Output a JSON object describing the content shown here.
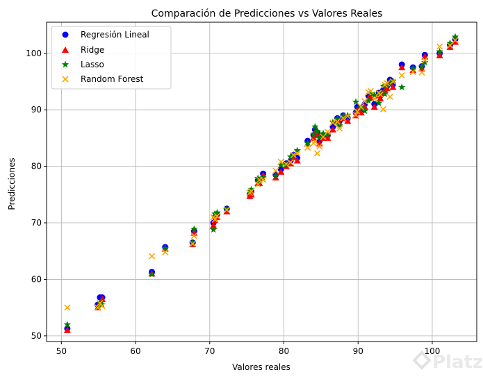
{
  "chart_data": {
    "type": "scatter",
    "title": "Comparación de Predicciones vs Valores Reales",
    "xlabel": "Valores reales",
    "ylabel": "Predicciones",
    "xlim": [
      48,
      106
    ],
    "ylim": [
      49,
      105.5
    ],
    "xticks": [
      50,
      60,
      70,
      80,
      90,
      100
    ],
    "yticks": [
      50,
      60,
      70,
      80,
      90,
      100
    ],
    "grid": true,
    "legend_position": "top-left",
    "x": [
      50.8,
      54.9,
      55.2,
      55.5,
      62.2,
      64.0,
      67.7,
      67.9,
      70.5,
      70.7,
      71.0,
      72.3,
      75.4,
      75.6,
      76.5,
      76.7,
      77.2,
      78.9,
      79.6,
      80.3,
      80.9,
      81.3,
      81.8,
      83.2,
      84.0,
      84.2,
      84.5,
      84.8,
      85.3,
      85.9,
      86.6,
      87.2,
      87.5,
      88.0,
      88.6,
      89.7,
      89.9,
      90.4,
      90.9,
      91.4,
      91.7,
      92.2,
      92.8,
      93.0,
      93.4,
      93.6,
      93.9,
      94.3,
      94.7,
      95.9,
      97.4,
      98.6,
      99.0,
      101.0,
      102.4,
      103.1
    ],
    "series": [
      {
        "name": "Regresión Lineal",
        "marker": "circle",
        "color": "#0000ff",
        "y": [
          51.3,
          55.5,
          56.8,
          56.8,
          61.3,
          65.7,
          66.5,
          68.5,
          70.0,
          71.0,
          71.5,
          72.5,
          75.0,
          75.5,
          77.5,
          77.5,
          78.7,
          78.5,
          79.5,
          80.5,
          81.0,
          82.0,
          81.5,
          84.5,
          85.5,
          86.5,
          86.0,
          84.5,
          85.5,
          85.5,
          87.0,
          88.5,
          88.0,
          89.0,
          88.5,
          89.5,
          90.5,
          90.0,
          91.0,
          92.5,
          92.5,
          91.0,
          93.0,
          92.5,
          93.5,
          94.0,
          94.2,
          95.3,
          94.5,
          98.0,
          97.5,
          97.7,
          99.7,
          100.0,
          101.5,
          102.5
        ]
      },
      {
        "name": "Ridge",
        "marker": "triangle",
        "color": "#ff0000",
        "y": [
          51.0,
          55.0,
          55.6,
          56.5,
          61.0,
          65.4,
          66.2,
          68.2,
          69.5,
          70.5,
          71.0,
          72.0,
          74.7,
          75.0,
          77.0,
          77.0,
          78.4,
          78.0,
          79.0,
          80.0,
          80.5,
          81.6,
          81.0,
          84.0,
          85.0,
          86.0,
          85.5,
          84.0,
          85.0,
          85.0,
          86.5,
          88.0,
          87.5,
          88.5,
          88.0,
          89.0,
          90.0,
          89.5,
          90.5,
          92.0,
          92.0,
          90.5,
          92.5,
          92.0,
          93.0,
          93.5,
          93.8,
          95.0,
          94.0,
          97.5,
          97.0,
          97.3,
          99.4,
          99.6,
          101.1,
          102.0
        ]
      },
      {
        "name": "Lasso",
        "marker": "star",
        "color": "#008000",
        "y": [
          52.0,
          55.2,
          55.8,
          55.6,
          60.9,
          65.5,
          66.5,
          68.9,
          68.8,
          71.6,
          71.8,
          72.4,
          75.6,
          75.9,
          77.9,
          77.3,
          78.0,
          78.3,
          80.2,
          80.3,
          81.7,
          82.0,
          82.8,
          84.1,
          85.7,
          87.0,
          86.2,
          85.1,
          85.8,
          85.7,
          87.8,
          88.4,
          87.2,
          88.9,
          89.0,
          91.4,
          89.8,
          90.4,
          89.8,
          91.6,
          92.9,
          92.6,
          91.2,
          93.1,
          94.2,
          92.8,
          94.4,
          94.6,
          95.1,
          94.0,
          97.3,
          97.7,
          98.4,
          100.3,
          101.8,
          102.9
        ]
      },
      {
        "name": "Random Forest",
        "marker": "x",
        "color": "#ffa500",
        "y": [
          55.0,
          55.0,
          55.8,
          55.3,
          64.1,
          64.8,
          66.3,
          67.7,
          71.0,
          70.6,
          71.2,
          72.3,
          75.3,
          75.6,
          76.8,
          77.6,
          77.6,
          79.2,
          80.8,
          80.4,
          80.7,
          82.0,
          82.3,
          83.3,
          84.1,
          84.4,
          82.3,
          83.5,
          85.2,
          86.1,
          87.7,
          87.9,
          86.7,
          88.5,
          88.9,
          89.1,
          89.7,
          90.5,
          91.5,
          93.1,
          93.3,
          92.0,
          93.0,
          92.7,
          90.1,
          94.4,
          94.7,
          92.3,
          95.0,
          96.1,
          96.7,
          96.6,
          98.8,
          101.2,
          101.4,
          102.3
        ]
      }
    ]
  },
  "watermark": {
    "text": "Platzi"
  }
}
